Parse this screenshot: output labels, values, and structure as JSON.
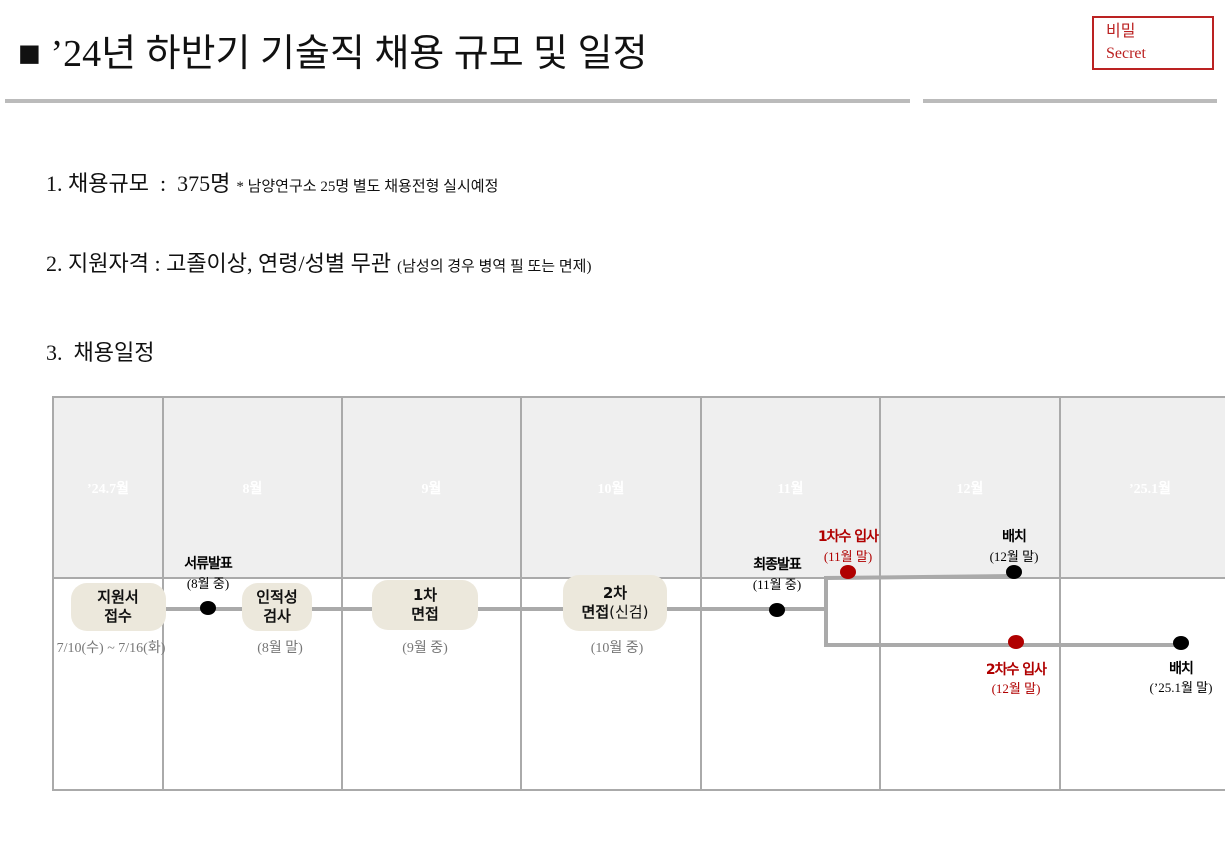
{
  "header": {
    "title": "■ ’24년 하반기 기술직 채용 규모 및 일정",
    "classification": [
      "비밀",
      "Secret"
    ]
  },
  "items": [
    {
      "text": "1. 채용규모  :  375명",
      "note": "* 남양연구소 25명 별도 채용전형 실시예정"
    },
    {
      "text": "2. 지원자격 : 고졸이상, 연령/성별 무관",
      "note": "(남성의 경우 병역 필 또는 면제)"
    },
    {
      "text": "3.  채용일정"
    }
  ],
  "schedule": {
    "months": [
      "’24.7월",
      "8월",
      "9월",
      "10월",
      "11월",
      "12월",
      "’25.1월"
    ],
    "stages": [
      {
        "label": [
          "지원서",
          "접수"
        ],
        "date": "7/10(수) ~ 7/16(화)"
      },
      {
        "label": [
          "인적성",
          "검사"
        ],
        "date": "(8월 말)"
      },
      {
        "label": [
          "1차",
          "면접"
        ],
        "date": "(9월 중)"
      },
      {
        "label": [
          "2차",
          "면접"
        ],
        "note": "(신검)",
        "date": "(10월 중)"
      }
    ],
    "milestones": [
      {
        "label": "서류발표",
        "date": "(8월 중)",
        "color": "#000000"
      },
      {
        "label": "최종발표",
        "date": "(11월 중)",
        "color": "#000000"
      },
      {
        "label": "1차수 입사",
        "date": "(11월 말)",
        "color": "#b00000"
      },
      {
        "label": "배치",
        "date": "(12월 말)",
        "color": "#000000"
      },
      {
        "label": "2차수 입사",
        "date": "(12월 말)",
        "color": "#b00000"
      },
      {
        "label": "배치",
        "date": "(’25.1월 말)",
        "color": "#000000"
      }
    ]
  }
}
